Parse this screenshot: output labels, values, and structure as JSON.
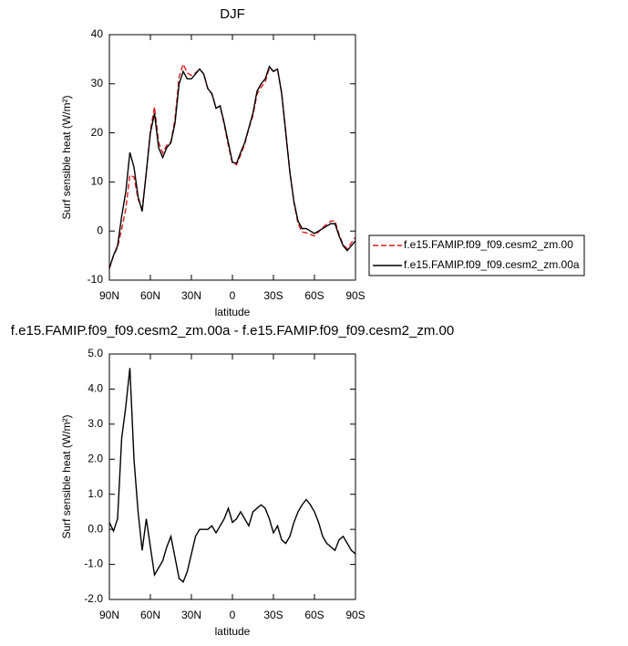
{
  "chart_data": [
    {
      "type": "line",
      "title": "DJF",
      "xlabel": "latitude",
      "ylabel": "Surf sensible heat (W/m²)",
      "x": [
        90,
        87,
        84,
        81,
        78,
        75,
        72,
        69,
        66,
        63,
        60,
        57,
        54,
        51,
        48,
        45,
        42,
        39,
        36,
        33,
        30,
        27,
        24,
        21,
        18,
        15,
        12,
        9,
        6,
        3,
        0,
        -3,
        -6,
        -9,
        -12,
        -15,
        -18,
        -21,
        -24,
        -27,
        -30,
        -33,
        -36,
        -39,
        -42,
        -45,
        -48,
        -51,
        -54,
        -57,
        -60,
        -63,
        -66,
        -69,
        -72,
        -75,
        -78,
        -81,
        -84,
        -87,
        -90
      ],
      "series": [
        {
          "name": "f.e15.FAMIP.f09_f09.cesm2_zm.00",
          "color": "#e41a1c",
          "line_style": "dashed",
          "values": [
            -7.7,
            -5.0,
            -3.3,
            0.4,
            4.5,
            11.4,
            11,
            6.5,
            4.6,
            11.7,
            20.5,
            25.3,
            18.1,
            15.9,
            17.5,
            18.2,
            22.8,
            31.4,
            34,
            32.2,
            31.7,
            32.2,
            33,
            32,
            29,
            27.9,
            25.1,
            25.4,
            21.7,
            17.4,
            13.8,
            13.5,
            15.5,
            17.7,
            20.9,
            23.5,
            27.9,
            29.3,
            30.4,
            33.2,
            32.6,
            32.9,
            28.3,
            20.4,
            12.2,
            5.8,
            1.5,
            -0.2,
            -0.35,
            -0.7,
            -1.0,
            -0.2,
            0.7,
            1.4,
            2.0,
            2.1,
            -0.7,
            -2.8,
            -3.6,
            -2.4,
            -1.3
          ]
        },
        {
          "name": "f.e15.FAMIP.f09_f09.cesm2_zm.00a",
          "color": "#000000",
          "line_style": "solid",
          "values": [
            -7.5,
            -5,
            -3,
            3,
            8,
            16,
            13,
            7,
            4,
            12,
            20,
            24,
            17,
            15,
            17,
            18,
            22,
            30,
            32.5,
            31,
            31,
            32,
            33,
            32,
            29,
            28,
            25,
            25.5,
            22,
            18,
            14,
            13.8,
            16,
            18,
            21,
            24,
            28.5,
            30,
            31,
            33.5,
            32.5,
            33,
            28,
            20,
            12,
            6,
            2,
            0.5,
            0.5,
            0,
            -0.5,
            0,
            0.5,
            1,
            1.5,
            1.5,
            -1,
            -3,
            -4,
            -3,
            -2
          ]
        }
      ],
      "xlim": [
        90,
        -90
      ],
      "xticks": [
        {
          "value": 90,
          "label": "90N"
        },
        {
          "value": 60,
          "label": "60N"
        },
        {
          "value": 30,
          "label": "30N"
        },
        0,
        {
          "value": -30,
          "label": "30S"
        },
        {
          "value": -60,
          "label": "60S"
        },
        {
          "value": -90,
          "label": "90S"
        }
      ],
      "ylim": [
        -10,
        40
      ],
      "yticks": [
        -10,
        0,
        10,
        20,
        30,
        40
      ],
      "legend": "right"
    },
    {
      "type": "line",
      "title": "f.e15.FAMIP.f09_f09.cesm2_zm.00a - f.e15.FAMIP.f09_f09.cesm2_zm.00",
      "xlabel": "latitude",
      "ylabel": "Surf sensible heat (W/m²)",
      "x": [
        90,
        87,
        84,
        81,
        78,
        75,
        72,
        69,
        66,
        63,
        60,
        57,
        54,
        51,
        48,
        45,
        42,
        39,
        36,
        33,
        30,
        27,
        24,
        21,
        18,
        15,
        12,
        9,
        6,
        3,
        0,
        -3,
        -6,
        -9,
        -12,
        -15,
        -18,
        -21,
        -24,
        -27,
        -30,
        -33,
        -36,
        -39,
        -42,
        -45,
        -48,
        -51,
        -54,
        -57,
        -60,
        -63,
        -66,
        -69,
        -72,
        -75,
        -78,
        -81,
        -84,
        -87,
        -90
      ],
      "color": "#000000",
      "values": [
        0.2,
        -0.05,
        0.3,
        2.6,
        3.5,
        4.6,
        2,
        0.5,
        -0.6,
        0.3,
        -0.5,
        -1.3,
        -1.1,
        -0.9,
        -0.5,
        -0.2,
        -0.8,
        -1.4,
        -1.5,
        -1.2,
        -0.7,
        -0.2,
        0.0,
        0.0,
        0.0,
        0.1,
        -0.1,
        0.1,
        0.3,
        0.6,
        0.2,
        0.3,
        0.5,
        0.3,
        0.1,
        0.5,
        0.6,
        0.7,
        0.6,
        0.3,
        -0.1,
        0.1,
        -0.3,
        -0.4,
        -0.2,
        0.2,
        0.5,
        0.7,
        0.85,
        0.7,
        0.5,
        0.2,
        -0.2,
        -0.4,
        -0.5,
        -0.6,
        -0.3,
        -0.2,
        -0.4,
        -0.6,
        -0.7
      ],
      "xlim": [
        90,
        -90
      ],
      "xticks": [
        {
          "value": 90,
          "label": "90N"
        },
        {
          "value": 60,
          "label": "60N"
        },
        {
          "value": 30,
          "label": "30N"
        },
        0,
        {
          "value": -30,
          "label": "30S"
        },
        {
          "value": -60,
          "label": "60S"
        },
        {
          "value": -90,
          "label": "90S"
        }
      ],
      "ylim": [
        -2,
        5
      ],
      "yticks": [
        {
          "value": -2,
          "label": "-2.0"
        },
        {
          "value": -1,
          "label": "-1.0"
        },
        {
          "value": 0,
          "label": "0.0"
        },
        {
          "value": 1,
          "label": "1.0"
        },
        {
          "value": 2,
          "label": "2.0"
        },
        {
          "value": 3,
          "label": "3.0"
        },
        {
          "value": 4,
          "label": "4.0"
        },
        {
          "value": 5,
          "label": "5.0"
        }
      ]
    }
  ]
}
